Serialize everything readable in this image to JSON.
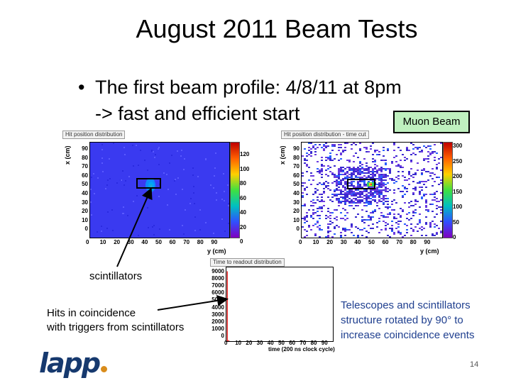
{
  "slide": {
    "title": "August 2011 Beam Tests",
    "bullet": "The first beam profile: 4/8/11 at 8pm",
    "sub_bullet": "-> fast and efficient start",
    "muon_label": "Muon Beam",
    "scintillators_label": "scintillators",
    "hits_label_line1": "Hits in coincidence",
    "hits_label_line2": "with triggers from scintillators",
    "telescopes_line1": "Telescopes and scintillators",
    "telescopes_line2": "structure rotated by 90° to",
    "telescopes_line3": "increase coincidence events",
    "logo_text": "lapp",
    "page_number": "14"
  },
  "plots": {
    "left": {
      "title": "Hit position distribution",
      "xunit": "y (cm)",
      "yunit": "x (cm)",
      "xticks": [
        "0",
        "10",
        "20",
        "30",
        "40",
        "50",
        "60",
        "70",
        "80",
        "90"
      ],
      "yticks": [
        "90",
        "80",
        "70",
        "60",
        "50",
        "40",
        "30",
        "20",
        "10",
        "0"
      ],
      "zticks": [
        "120",
        "100",
        "80",
        "60",
        "40",
        "20",
        "0"
      ]
    },
    "right": {
      "title": "Hit position distribution - time cut",
      "xunit": "y (cm)",
      "yunit": "x (cm)",
      "xticks": [
        "0",
        "10",
        "20",
        "30",
        "40",
        "50",
        "60",
        "70",
        "80",
        "90"
      ],
      "yticks": [
        "90",
        "80",
        "70",
        "60",
        "50",
        "40",
        "30",
        "20",
        "10",
        "0"
      ],
      "zticks": [
        "300",
        "250",
        "200",
        "150",
        "100",
        "50",
        "0"
      ]
    },
    "bottom": {
      "title": "Time to readout distribution",
      "xunit": "time (200 ns clock cycle)",
      "xticks": [
        "0",
        "10",
        "20",
        "30",
        "40",
        "50",
        "60",
        "70",
        "80",
        "90"
      ],
      "yticks": [
        "9000",
        "8000",
        "7000",
        "6000",
        "5000",
        "4000",
        "3000",
        "2000",
        "1000",
        "0"
      ]
    }
  },
  "chart_data": {
    "type": "histogram",
    "title": "Time to readout distribution",
    "xlabel": "time (200 ns clock cycle)",
    "ylabel": "",
    "xlim": [
      0,
      100
    ],
    "ylim": [
      0,
      9500
    ],
    "bins": [
      {
        "x": 1,
        "y": 9000
      },
      {
        "x": 2,
        "y": 120
      },
      {
        "x": 3,
        "y": 30
      }
    ]
  },
  "colors": {
    "heatmap_background": "#3a3af0",
    "muon_box_fill": "#bff0bf",
    "telescopes_text": "#1f3f8f",
    "logo_blue": "#16396e",
    "logo_orange": "#d98c1b"
  }
}
